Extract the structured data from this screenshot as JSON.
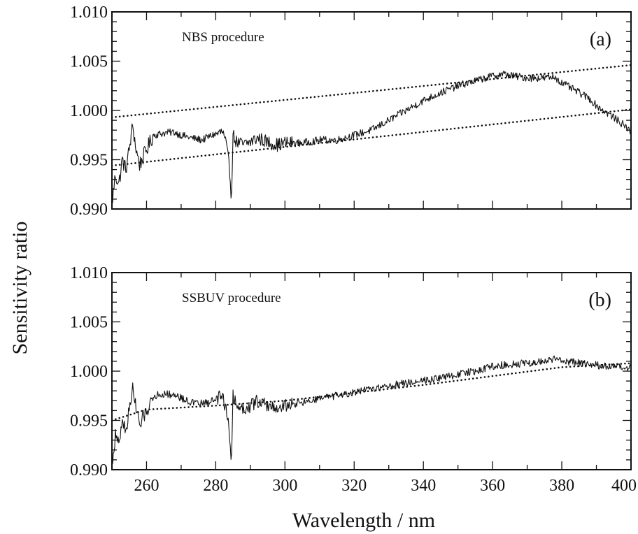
{
  "figure": {
    "ylabel": "Sensitivity ratio",
    "xlabel": "Wavelength / nm"
  },
  "chart_data": [
    {
      "type": "line",
      "panel": "(a)",
      "annotation": "NBS  procedure",
      "xlim": [
        250,
        400
      ],
      "ylim": [
        0.99,
        1.01
      ],
      "x_ticks": [
        260,
        280,
        300,
        320,
        340,
        360,
        380,
        400
      ],
      "y_ticks": [
        "1.010",
        "1.005",
        "1.000",
        "0.995",
        "0.990"
      ],
      "series": [
        {
          "style": "solid",
          "x": [
            250,
            251,
            252,
            253,
            254,
            255,
            256,
            257,
            258,
            260,
            262,
            265,
            268,
            270,
            273,
            276,
            279,
            282,
            283,
            284,
            284.5,
            285,
            286,
            288,
            290,
            292,
            295,
            298,
            300,
            305,
            310,
            315,
            320,
            325,
            330,
            335,
            340,
            345,
            350,
            355,
            360,
            363,
            366,
            370,
            375,
            378,
            380,
            383,
            385,
            388,
            390,
            392,
            395,
            398,
            400
          ],
          "y": [
            0.9905,
            0.9935,
            0.9925,
            0.995,
            0.994,
            0.996,
            0.9985,
            0.996,
            0.9945,
            0.996,
            0.9975,
            0.9977,
            0.9978,
            0.9975,
            0.9972,
            0.997,
            0.9975,
            0.9978,
            0.9965,
            0.994,
            0.991,
            0.9975,
            0.9968,
            0.9965,
            0.9968,
            0.9972,
            0.9968,
            0.9965,
            0.9967,
            0.9967,
            0.997,
            0.997,
            0.9975,
            0.998,
            0.999,
            1.0,
            1.001,
            1.0018,
            1.0025,
            1.003,
            1.0035,
            1.0037,
            1.0035,
            1.0033,
            1.0033,
            1.0034,
            1.0028,
            1.0022,
            1.0018,
            1.0012,
            1.0005,
            1.0,
            0.9993,
            0.9985,
            0.9978
          ]
        },
        {
          "style": "dotted",
          "x": [
            250,
            400
          ],
          "y": [
            0.9993,
            1.0046
          ]
        },
        {
          "style": "dotted",
          "x": [
            250,
            400
          ],
          "y": [
            0.9944,
            1.0001
          ]
        }
      ]
    },
    {
      "type": "line",
      "panel": "(b)",
      "annotation": "SSBUV  procedure",
      "xlim": [
        250,
        400
      ],
      "ylim": [
        0.99,
        1.01
      ],
      "x_ticks": [
        260,
        280,
        300,
        320,
        340,
        360,
        380,
        400
      ],
      "y_ticks": [
        "1.010",
        "1.005",
        "1.000",
        "0.995",
        "0.990"
      ],
      "series": [
        {
          "style": "solid",
          "x": [
            250,
            251,
            252,
            253,
            254,
            255,
            256,
            257,
            258,
            260,
            262,
            265,
            268,
            270,
            273,
            276,
            279,
            282,
            283,
            284,
            284.5,
            285,
            286,
            288,
            290,
            292,
            295,
            298,
            300,
            305,
            310,
            315,
            320,
            325,
            330,
            335,
            340,
            345,
            350,
            355,
            360,
            365,
            370,
            375,
            378,
            380,
            385,
            390,
            395,
            400
          ],
          "y": [
            0.9905,
            0.9935,
            0.9925,
            0.995,
            0.994,
            0.996,
            0.9985,
            0.996,
            0.9945,
            0.996,
            0.9975,
            0.9977,
            0.9976,
            0.9973,
            0.9968,
            0.9967,
            0.997,
            0.9975,
            0.9962,
            0.9935,
            0.991,
            0.9975,
            0.9965,
            0.9962,
            0.9965,
            0.997,
            0.9965,
            0.9962,
            0.9965,
            0.9968,
            0.9972,
            0.9975,
            0.9978,
            0.9982,
            0.9985,
            0.9988,
            0.9991,
            0.9993,
            0.9997,
            1.0,
            1.0005,
            1.0007,
            1.0008,
            1.001,
            1.0012,
            1.0011,
            1.0008,
            1.0006,
            1.0004,
            1.0003
          ]
        },
        {
          "style": "dotted",
          "x": [
            250,
            260,
            280,
            300,
            320,
            340,
            360,
            380,
            400
          ],
          "y": [
            0.995,
            0.9961,
            0.9965,
            0.997,
            0.9978,
            0.9986,
            0.9995,
            1.0004,
            1.0008
          ]
        }
      ]
    }
  ]
}
